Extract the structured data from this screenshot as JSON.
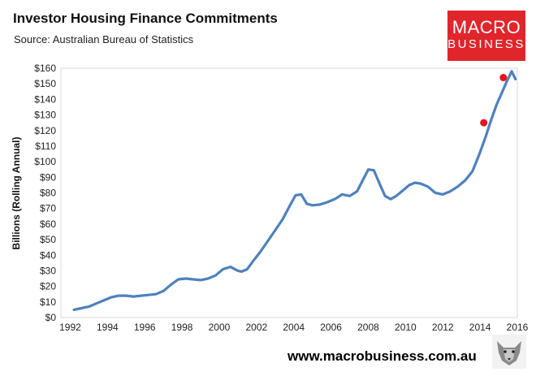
{
  "header": {
    "title": "Investor Housing Finance Commitments",
    "subtitle": "Source: Australian Bureau of Statistics"
  },
  "logo": {
    "line1": "MACRO",
    "line2": "BUSINESS"
  },
  "footer": {
    "url": "www.macrobusiness.com.au"
  },
  "colors": {
    "line": "#4f81bd",
    "marker": "#e3141b",
    "logo_bg": "#e0252b",
    "gridline": "#d9d9d9"
  },
  "chart_data": {
    "type": "line",
    "title": "Investor Housing Finance Commitments",
    "subtitle": "Source: Australian Bureau of Statistics",
    "xlabel": "",
    "ylabel": "Billions (Rolling Annual)",
    "xlim": [
      1991.5,
      2016
    ],
    "ylim": [
      0,
      160
    ],
    "x_ticks": [
      1992,
      1994,
      1996,
      1998,
      2000,
      2002,
      2004,
      2006,
      2008,
      2010,
      2012,
      2014,
      2016
    ],
    "x_tick_labels": [
      "1992",
      "1994",
      "1996",
      "1998",
      "2000",
      "2002",
      "2004",
      "2006",
      "2008",
      "2010",
      "2012",
      "2014",
      "2016"
    ],
    "y_ticks": [
      0,
      10,
      20,
      30,
      40,
      50,
      60,
      70,
      80,
      90,
      100,
      110,
      120,
      130,
      140,
      150,
      160
    ],
    "y_tick_labels": [
      "$0",
      "$10",
      "$20",
      "$30",
      "$40",
      "$50",
      "$60",
      "$70",
      "$80",
      "$90",
      "$100",
      "$110",
      "$120",
      "$130",
      "$140",
      "$150",
      "$160"
    ],
    "grid": false,
    "series": [
      {
        "x": [
          1992.2,
          1992.6,
          1993.0,
          1993.4,
          1993.8,
          1994.2,
          1994.6,
          1995.0,
          1995.4,
          1995.8,
          1996.2,
          1996.6,
          1997.0,
          1997.4,
          1997.8,
          1998.2,
          1998.6,
          1999.0,
          1999.4,
          1999.8,
          2000.2,
          2000.6,
          2001.0,
          2001.2,
          2001.5,
          2001.8,
          2002.2,
          2002.6,
          2003.0,
          2003.4,
          2003.8,
          2004.1,
          2004.4,
          2004.7,
          2005.0,
          2005.4,
          2005.8,
          2006.2,
          2006.6,
          2007.0,
          2007.4,
          2007.7,
          2008.0,
          2008.3,
          2008.6,
          2008.9,
          2009.2,
          2009.5,
          2009.8,
          2010.2,
          2010.5,
          2010.8,
          2011.2,
          2011.6,
          2012.0,
          2012.4,
          2012.8,
          2013.2,
          2013.6,
          2014.0,
          2014.3,
          2014.6,
          2014.9,
          2015.2,
          2015.45,
          2015.7,
          2015.9
        ],
        "y": [
          5,
          6,
          7,
          9,
          11,
          13,
          14,
          14,
          13.5,
          14,
          14.5,
          15,
          17,
          21,
          24.5,
          25,
          24.5,
          24,
          25,
          27,
          31,
          32.5,
          30,
          29.5,
          31,
          36,
          42,
          49,
          56,
          63,
          72,
          78.5,
          79,
          73,
          72,
          72.5,
          74,
          76,
          79,
          78,
          81,
          88,
          95,
          94.5,
          86,
          78,
          76,
          78,
          81,
          85,
          86.5,
          86,
          84,
          80,
          79,
          81,
          84,
          88,
          94,
          106,
          116,
          127,
          137,
          145,
          152,
          158,
          153
        ]
      }
    ],
    "highlighted_points": [
      {
        "x": 2014.2,
        "y": 125
      },
      {
        "x": 2015.25,
        "y": 154
      }
    ]
  }
}
